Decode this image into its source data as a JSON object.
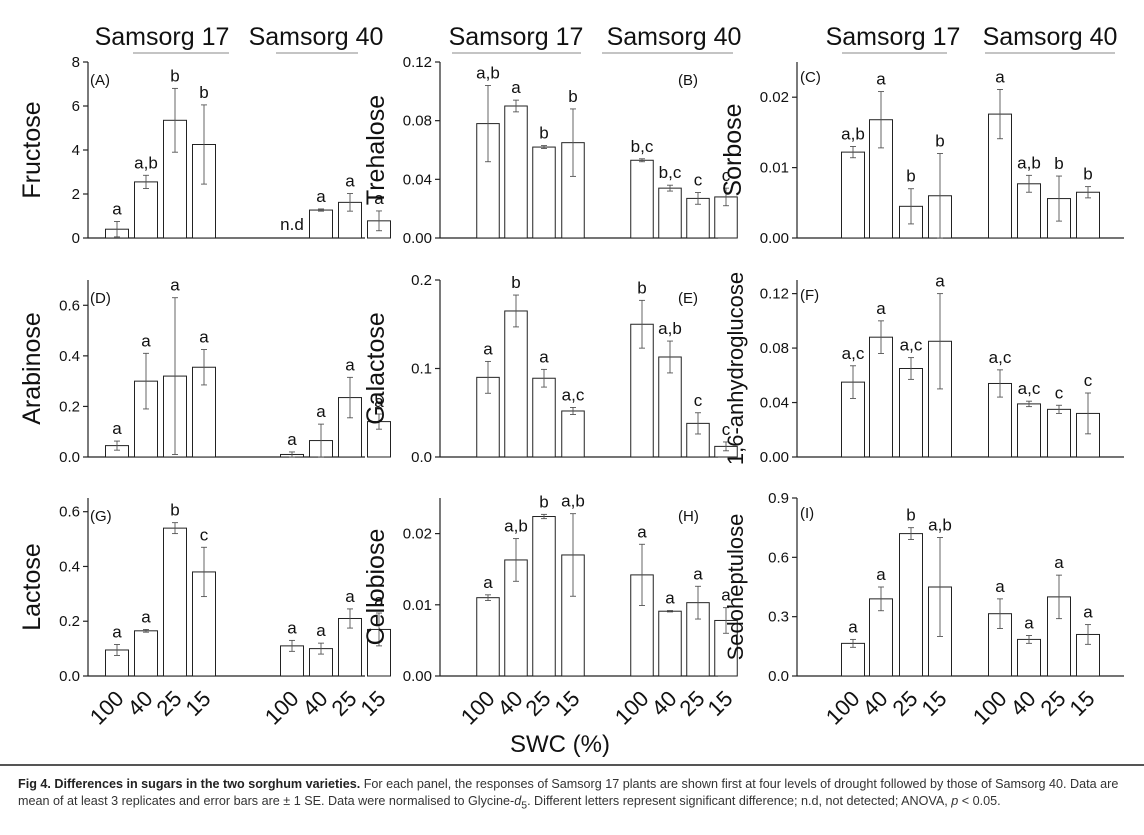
{
  "figure": {
    "x_axis_title": "SWC (%)",
    "group_labels": [
      "Samsorg 17",
      "Samsorg 40"
    ],
    "x_tick_labels": [
      "100",
      "40",
      "25",
      "15",
      "100",
      "40",
      "25",
      "15"
    ]
  },
  "caption": {
    "bold": "Fig 4. Differences in sugars in the two sorghum varieties.",
    "part1": " For each panel, the responses of Samsorg 17 plants are shown first at four levels of drought followed by those of Samsorg 40. Data are mean of at least 3 replicates and error bars are ± 1 SE. Data were normalised to Glycine-",
    "italic_d": "d",
    "sub5": "5",
    "part2": ". Different letters represent significant difference; n.d, not detected; ANOVA, ",
    "italic_p": "p",
    "part3": " < 0.05."
  },
  "chart_data": [
    {
      "type": "bar",
      "panel": "(A)",
      "ylabel": "Fructose",
      "ylim": [
        0,
        8
      ],
      "yticks": [
        "0",
        "2",
        "4",
        "6",
        "8"
      ],
      "categories": [
        "100",
        "40",
        "25",
        "15",
        "100",
        "40",
        "25",
        "15"
      ],
      "values": [
        0.4,
        2.55,
        5.35,
        4.25,
        0,
        1.27,
        1.62,
        0.78
      ],
      "errors": [
        0.35,
        0.3,
        1.45,
        1.8,
        0,
        0.05,
        0.4,
        0.45
      ],
      "letters": [
        "a",
        "a,b",
        "b",
        "b",
        "n.d",
        "a",
        "a",
        "a"
      ]
    },
    {
      "type": "bar",
      "panel": "(B)",
      "ylabel": "Trehalose",
      "ylim": [
        0,
        0.12
      ],
      "yticks": [
        "0.00",
        "0.04",
        "0.08",
        "0.12"
      ],
      "categories": [
        "100",
        "40",
        "25",
        "15",
        "100",
        "40",
        "25",
        "15"
      ],
      "values": [
        0.078,
        0.09,
        0.062,
        0.065,
        0.053,
        0.034,
        0.027,
        0.028
      ],
      "errors": [
        0.026,
        0.004,
        0.001,
        0.023,
        0.001,
        0.002,
        0.004,
        0.006
      ],
      "letters": [
        "a,b",
        "a",
        "b",
        "b",
        "b,c",
        "b,c",
        "c",
        "c"
      ]
    },
    {
      "type": "bar",
      "panel": "(C)",
      "ylabel": "Sorbose",
      "ylim": [
        0,
        0.025
      ],
      "yticks": [
        "0.00",
        "0.01",
        "0.02"
      ],
      "categories": [
        "100",
        "40",
        "25",
        "15",
        "100",
        "40",
        "25",
        "15"
      ],
      "values": [
        0.0122,
        0.0168,
        0.0045,
        0.006,
        0.0176,
        0.0077,
        0.0056,
        0.0065
      ],
      "errors": [
        0.0008,
        0.004,
        0.0025,
        0.006,
        0.0035,
        0.0012,
        0.0032,
        0.0008
      ],
      "letters": [
        "a,b",
        "a",
        "b",
        "b",
        "a",
        "a,b",
        "b",
        "b"
      ]
    },
    {
      "type": "bar",
      "panel": "(D)",
      "ylabel": "Arabinose",
      "ylim": [
        0,
        0.7
      ],
      "yticks": [
        "0.0",
        "0.2",
        "0.4",
        "0.6"
      ],
      "categories": [
        "100",
        "40",
        "25",
        "15",
        "100",
        "40",
        "25",
        "15"
      ],
      "values": [
        0.045,
        0.3,
        0.32,
        0.355,
        0.01,
        0.065,
        0.235,
        0.14
      ],
      "errors": [
        0.018,
        0.11,
        0.31,
        0.07,
        0.01,
        0.065,
        0.08,
        0.03
      ],
      "letters": [
        "a",
        "a",
        "a",
        "a",
        "a",
        "a",
        "a",
        "a"
      ]
    },
    {
      "type": "bar",
      "panel": "(E)",
      "ylabel": "Galactose",
      "ylim": [
        0,
        0.2
      ],
      "yticks": [
        "0.0",
        "0.1",
        "0.2"
      ],
      "categories": [
        "100",
        "40",
        "25",
        "15",
        "100",
        "40",
        "25",
        "15"
      ],
      "values": [
        0.09,
        0.165,
        0.089,
        0.052,
        0.15,
        0.113,
        0.038,
        0.012
      ],
      "errors": [
        0.018,
        0.018,
        0.01,
        0.004,
        0.027,
        0.018,
        0.012,
        0.005
      ],
      "letters": [
        "a",
        "b",
        "a",
        "a,c",
        "b",
        "a,b",
        "c",
        "c"
      ]
    },
    {
      "type": "bar",
      "panel": "(F)",
      "ylabel": "1,6-anhydroglucose",
      "ylim": [
        0,
        0.13
      ],
      "yticks": [
        "0.00",
        "0.04",
        "0.08",
        "0.12"
      ],
      "categories": [
        "100",
        "40",
        "25",
        "15",
        "100",
        "40",
        "25",
        "15"
      ],
      "values": [
        0.055,
        0.088,
        0.065,
        0.085,
        0.054,
        0.039,
        0.035,
        0.032
      ],
      "errors": [
        0.012,
        0.012,
        0.008,
        0.035,
        0.01,
        0.002,
        0.003,
        0.015
      ],
      "letters": [
        "a,c",
        "a",
        "a,c",
        "a",
        "a,c",
        "a,c",
        "c",
        "c"
      ]
    },
    {
      "type": "bar",
      "panel": "(G)",
      "ylabel": "Lactose",
      "ylim": [
        0,
        0.65
      ],
      "yticks": [
        "0.0",
        "0.2",
        "0.4",
        "0.6"
      ],
      "categories": [
        "100",
        "40",
        "25",
        "15",
        "100",
        "40",
        "25",
        "15"
      ],
      "values": [
        0.095,
        0.165,
        0.54,
        0.38,
        0.11,
        0.1,
        0.21,
        0.17
      ],
      "errors": [
        0.02,
        0.005,
        0.02,
        0.09,
        0.02,
        0.02,
        0.035,
        0.06
      ],
      "letters": [
        "a",
        "a",
        "b",
        "c",
        "a",
        "a",
        "a",
        "a"
      ]
    },
    {
      "type": "bar",
      "panel": "(H)",
      "ylabel": "Cellobiose",
      "ylim": [
        0,
        0.025
      ],
      "yticks": [
        "0.00",
        "0.01",
        "0.02"
      ],
      "categories": [
        "100",
        "40",
        "25",
        "15",
        "100",
        "40",
        "25",
        "15"
      ],
      "values": [
        0.011,
        0.0163,
        0.0224,
        0.017,
        0.0142,
        0.0091,
        0.0103,
        0.0078
      ],
      "errors": [
        0.0004,
        0.003,
        0.0003,
        0.0058,
        0.0043,
        0.0001,
        0.0023,
        0.0018
      ],
      "letters": [
        "a",
        "a,b",
        "b",
        "a,b",
        "a",
        "a",
        "a",
        "a"
      ]
    },
    {
      "type": "bar",
      "panel": "(I)",
      "ylabel": "Sedoheptulose",
      "ylim": [
        0,
        0.9
      ],
      "yticks": [
        "0.0",
        "0.3",
        "0.6",
        "0.9"
      ],
      "categories": [
        "100",
        "40",
        "25",
        "15",
        "100",
        "40",
        "25",
        "15"
      ],
      "values": [
        0.165,
        0.39,
        0.72,
        0.45,
        0.315,
        0.185,
        0.4,
        0.21
      ],
      "errors": [
        0.02,
        0.06,
        0.03,
        0.25,
        0.075,
        0.02,
        0.11,
        0.05
      ],
      "letters": [
        "a",
        "a",
        "b",
        "a,b",
        "a",
        "a",
        "a",
        "a"
      ]
    }
  ]
}
